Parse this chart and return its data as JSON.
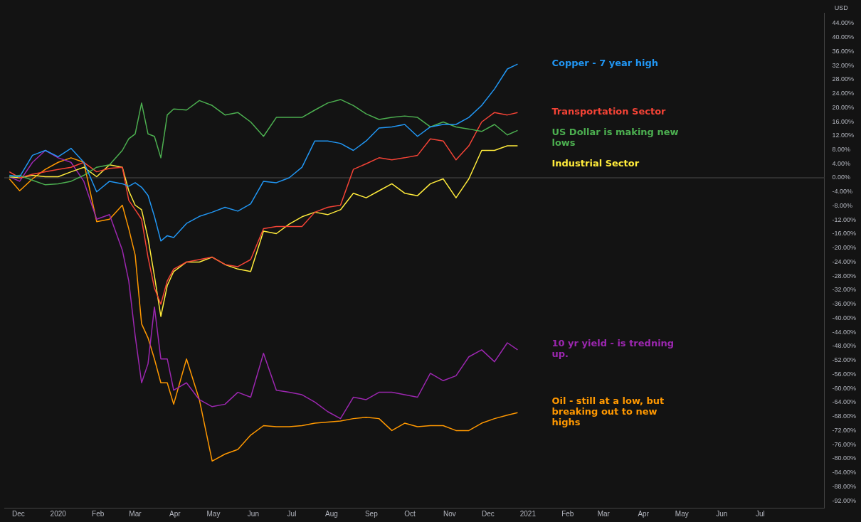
{
  "chart_data": {
    "type": "line",
    "ylabel": "USD",
    "x": [
      "2019-11-24",
      "2019-12-02",
      "2019-12-12",
      "2019-12-22",
      "2020-01-01",
      "2020-01-11",
      "2020-01-21",
      "2020-01-31",
      "2020-02-10",
      "2020-02-20",
      "2020-02-25",
      "2020-03-01",
      "2020-03-06",
      "2020-03-11",
      "2020-03-16",
      "2020-03-21",
      "2020-03-26",
      "2020-03-31",
      "2020-04-10",
      "2020-04-20",
      "2020-04-30",
      "2020-05-10",
      "2020-05-20",
      "2020-05-30",
      "2020-06-09",
      "2020-06-19",
      "2020-06-29",
      "2020-07-09",
      "2020-07-19",
      "2020-07-29",
      "2020-08-08",
      "2020-08-18",
      "2020-08-28",
      "2020-09-07",
      "2020-09-17",
      "2020-09-27",
      "2020-10-07",
      "2020-10-17",
      "2020-10-27",
      "2020-11-06",
      "2020-11-16",
      "2020-11-26",
      "2020-12-06",
      "2020-12-16",
      "2020-12-24"
    ],
    "xlim": [
      "2019-11-20",
      "2021-08-20"
    ],
    "xticks": [
      {
        "value": "2019-12-01",
        "label": "Dec"
      },
      {
        "value": "2020-01-01",
        "label": "2020"
      },
      {
        "value": "2020-02-01",
        "label": "Feb"
      },
      {
        "value": "2020-03-01",
        "label": "Mar"
      },
      {
        "value": "2020-04-01",
        "label": "Apr"
      },
      {
        "value": "2020-05-01",
        "label": "May"
      },
      {
        "value": "2020-06-01",
        "label": "Jun"
      },
      {
        "value": "2020-07-01",
        "label": "Jul"
      },
      {
        "value": "2020-08-01",
        "label": "Aug"
      },
      {
        "value": "2020-09-01",
        "label": "Sep"
      },
      {
        "value": "2020-10-01",
        "label": "Oct"
      },
      {
        "value": "2020-11-01",
        "label": "Nov"
      },
      {
        "value": "2020-12-01",
        "label": "Dec"
      },
      {
        "value": "2021-01-01",
        "label": "2021"
      },
      {
        "value": "2021-02-01",
        "label": "Feb"
      },
      {
        "value": "2021-03-01",
        "label": "Mar"
      },
      {
        "value": "2021-04-01",
        "label": "Apr"
      },
      {
        "value": "2021-05-01",
        "label": "May"
      },
      {
        "value": "2021-06-01",
        "label": "Jun"
      },
      {
        "value": "2021-07-01",
        "label": "Jul"
      }
    ],
    "ylim": [
      -94,
      47
    ],
    "yticks": [
      {
        "value": 44,
        "label": "44.00%"
      },
      {
        "value": 40,
        "label": "40.00%"
      },
      {
        "value": 36,
        "label": "36.00%"
      },
      {
        "value": 32,
        "label": "32.00%"
      },
      {
        "value": 28,
        "label": "28.00%"
      },
      {
        "value": 24,
        "label": "24.00%"
      },
      {
        "value": 20,
        "label": "20.00%"
      },
      {
        "value": 16,
        "label": "16.00%"
      },
      {
        "value": 12,
        "label": "12.00%"
      },
      {
        "value": 8,
        "label": "8.00%"
      },
      {
        "value": 4,
        "label": "4.00%"
      },
      {
        "value": 0,
        "label": "0.00%"
      },
      {
        "value": -4,
        "label": "-4.00%"
      },
      {
        "value": -8,
        "label": "-8.00%"
      },
      {
        "value": -12,
        "label": "-12.00%"
      },
      {
        "value": -16,
        "label": "-16.00%"
      },
      {
        "value": -20,
        "label": "-20.00%"
      },
      {
        "value": -24,
        "label": "-24.00%"
      },
      {
        "value": -28,
        "label": "-28.00%"
      },
      {
        "value": -32,
        "label": "-32.00%"
      },
      {
        "value": -36,
        "label": "-36.00%"
      },
      {
        "value": -40,
        "label": "-40.00%"
      },
      {
        "value": -44,
        "label": "-44.00%"
      },
      {
        "value": -48,
        "label": "-48.00%"
      },
      {
        "value": -52,
        "label": "-52.00%"
      },
      {
        "value": -56,
        "label": "-56.00%"
      },
      {
        "value": -60,
        "label": "-60.00%"
      },
      {
        "value": -64,
        "label": "-64.00%"
      },
      {
        "value": -68,
        "label": "-68.00%"
      },
      {
        "value": -72,
        "label": "-72.00%"
      },
      {
        "value": -76,
        "label": "-76.00%"
      },
      {
        "value": -80,
        "label": "-80.00%"
      },
      {
        "value": -84,
        "label": "-84.00%"
      },
      {
        "value": -88,
        "label": "-88.00%"
      },
      {
        "value": -92,
        "label": "-92.00%"
      }
    ],
    "ref_lines": [
      {
        "axis": "y",
        "value": 0,
        "color": "#3a3a3a"
      }
    ],
    "series": [
      {
        "name": "Copper - 7 year high",
        "color": "#2196f3",
        "values": [
          0.7,
          0.3,
          6.4,
          7.8,
          6,
          8.4,
          4.4,
          -4,
          -1,
          -1.7,
          -2.4,
          -1.4,
          -2.7,
          -5,
          -11,
          -18,
          -16.5,
          -17,
          -13,
          -11,
          -9.8,
          -8.4,
          -9.5,
          -7.4,
          -1,
          -1.4,
          0,
          3,
          10.5,
          10.5,
          9.8,
          7.8,
          10.5,
          14.2,
          14.5,
          15.2,
          11.8,
          14.5,
          15.2,
          15.2,
          17.2,
          20.6,
          25.3,
          31,
          32.4
        ]
      },
      {
        "name": "US Dollar is making new lows",
        "color": "#4caf50",
        "values": [
          0.3,
          0.7,
          -0.7,
          -2,
          -1.7,
          -1,
          0.7,
          3,
          3.7,
          7.8,
          11.1,
          12.5,
          21.3,
          12.5,
          11.8,
          5.7,
          17.9,
          19.6,
          19.3,
          22,
          20.6,
          17.9,
          18.6,
          15.9,
          11.8,
          17.2,
          17.2,
          17.2,
          19.3,
          21.3,
          22.3,
          20.6,
          18.2,
          16.6,
          17.2,
          17.6,
          17.2,
          14.5,
          15.9,
          14.5,
          13.9,
          13.2,
          15.2,
          12.2,
          13.5
        ]
      },
      {
        "name": "Transportation Sector",
        "color": "#f44336",
        "values": [
          1.7,
          0,
          1,
          1.7,
          2.4,
          3,
          4.4,
          1.7,
          2.7,
          3,
          -6.4,
          -9.1,
          -11.8,
          -22.6,
          -31.4,
          -36,
          -29.4,
          -26,
          -24,
          -23.3,
          -22.6,
          -24.7,
          -25.3,
          -23.3,
          -14.5,
          -13.9,
          -13.9,
          -13.9,
          -9.8,
          -8.4,
          -7.8,
          2.4,
          4,
          5.7,
          5.1,
          5.7,
          6.4,
          11.1,
          10.5,
          5.1,
          9.1,
          15.9,
          18.6,
          17.9,
          18.6
        ]
      },
      {
        "name": "Industrial Sector",
        "color": "#ffeb3b",
        "values": [
          0.3,
          0,
          0.7,
          0.3,
          0.3,
          1.7,
          3,
          0.3,
          3.7,
          3,
          -3.7,
          -7.8,
          -9.1,
          -17.2,
          -28,
          -39.5,
          -30.7,
          -26.7,
          -24,
          -24,
          -22.6,
          -24.7,
          -26,
          -26.7,
          -15.2,
          -15.9,
          -13.2,
          -11.1,
          -9.8,
          -10.5,
          -9.1,
          -4.4,
          -5.7,
          -3.7,
          -1.7,
          -4.4,
          -5.1,
          -1.7,
          -0.3,
          -5.7,
          -0.3,
          7.8,
          7.8,
          9.1,
          9.1
        ]
      },
      {
        "name": "10 yr yield - is tredning up.",
        "color": "#9c27b0",
        "values": [
          0.3,
          -1,
          4.4,
          7.8,
          5.7,
          4.4,
          -1,
          -11.8,
          -10.5,
          -20.6,
          -29.4,
          -45,
          -58.4,
          -53,
          -36.8,
          -51.6,
          -51.6,
          -60.5,
          -58.4,
          -63.2,
          -65.2,
          -64.5,
          -61.1,
          -62.5,
          -50,
          -60.5,
          -61.1,
          -61.8,
          -63.9,
          -66.6,
          -68.6,
          -62.5,
          -63.2,
          -61.1,
          -61.1,
          -61.8,
          -62.5,
          -55.7,
          -57.8,
          -56.4,
          -51,
          -49,
          -52.4,
          -47,
          -49
        ]
      },
      {
        "name": "Oil - still at a low, but breaking out to new highs",
        "color": "#ff9800",
        "values": [
          -0.3,
          -3.7,
          -0.3,
          2.4,
          4.4,
          5.7,
          4.4,
          -12.5,
          -11.8,
          -7.8,
          -14.5,
          -22,
          -41.6,
          -45.6,
          -51.6,
          -58.4,
          -58.4,
          -64.5,
          -51.6,
          -63.2,
          -80.7,
          -78.7,
          -77.4,
          -73.3,
          -70.6,
          -70.9,
          -70.9,
          -70.6,
          -69.9,
          -69.6,
          -69.3,
          -68.6,
          -68.2,
          -68.6,
          -72,
          -69.9,
          -70.9,
          -70.6,
          -70.6,
          -72,
          -72,
          -69.9,
          -68.6,
          -67.6,
          -66.9
        ]
      }
    ]
  }
}
